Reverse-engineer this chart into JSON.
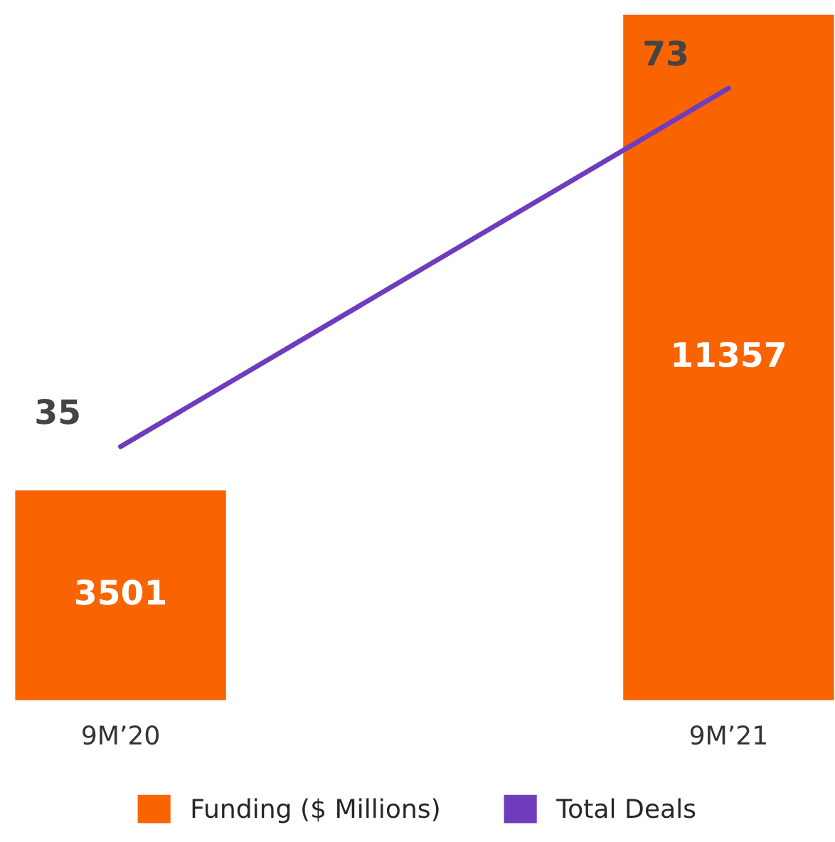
{
  "chart_data": {
    "type": "bar",
    "categories": [
      "9M’20",
      "9M’21"
    ],
    "series": [
      {
        "name": "Funding ($ Millions)",
        "color": "#f96400",
        "values": [
          3501,
          11357
        ]
      },
      {
        "name": "Total Deals",
        "color": "#6f3cbe",
        "type": "line",
        "axis": "y2",
        "values": [
          35,
          73
        ]
      }
    ],
    "data_labels": true,
    "legend": "bottom",
    "grid": false,
    "tick_labels": "x"
  }
}
